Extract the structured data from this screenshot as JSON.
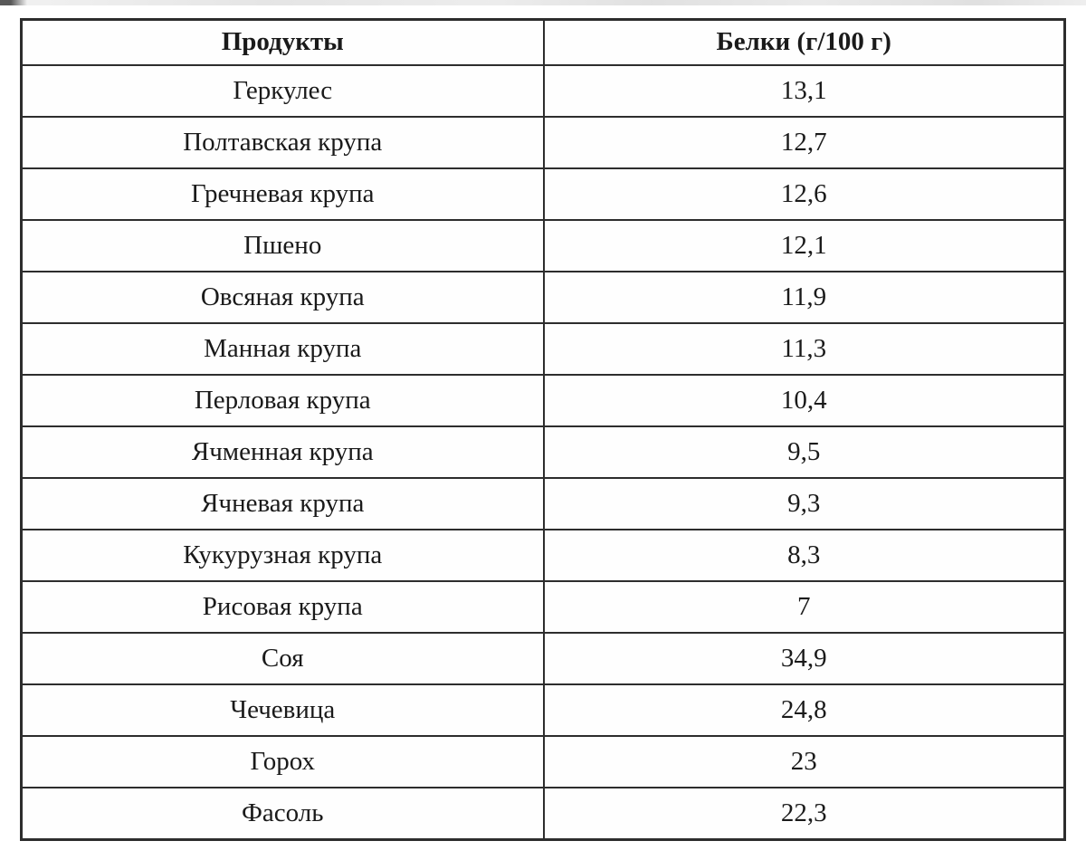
{
  "colors": {
    "border": "#2d2d2d",
    "text": "#1a1a1a",
    "background": "#ffffff"
  },
  "table": {
    "header": {
      "products": "Продукты",
      "protein": "Белки (г/100 г)"
    },
    "rows": [
      {
        "product": "Геркулес",
        "protein": "13,1"
      },
      {
        "product": "Полтавская крупа",
        "protein": "12,7"
      },
      {
        "product": "Гречневая крупа",
        "protein": "12,6"
      },
      {
        "product": "Пшено",
        "protein": "12,1"
      },
      {
        "product": "Овсяная крупа",
        "protein": "11,9"
      },
      {
        "product": "Манная крупа",
        "protein": "11,3"
      },
      {
        "product": "Перловая крупа",
        "protein": "10,4"
      },
      {
        "product": "Ячменная крупа",
        "protein": "9,5"
      },
      {
        "product": "Ячневая крупа",
        "protein": "9,3"
      },
      {
        "product": "Кукурузная крупа",
        "protein": "8,3"
      },
      {
        "product": "Рисовая крупа",
        "protein": "7"
      },
      {
        "product": "Соя",
        "protein": "34,9"
      },
      {
        "product": "Чечевица",
        "protein": "24,8"
      },
      {
        "product": "Горох",
        "protein": "23"
      },
      {
        "product": "Фасоль",
        "protein": "22,3"
      }
    ]
  },
  "chart_data": {
    "type": "table",
    "title": "",
    "columns": [
      "Продукты",
      "Белки (г/100 г)"
    ],
    "rows": [
      [
        "Геркулес",
        13.1
      ],
      [
        "Полтавская крупа",
        12.7
      ],
      [
        "Гречневая крупа",
        12.6
      ],
      [
        "Пшено",
        12.1
      ],
      [
        "Овсяная крупа",
        11.9
      ],
      [
        "Манная крупа",
        11.3
      ],
      [
        "Перловая крупа",
        10.4
      ],
      [
        "Ячменная крупа",
        9.5
      ],
      [
        "Ячневая крупа",
        9.3
      ],
      [
        "Кукурузная крупа",
        8.3
      ],
      [
        "Рисовая крупа",
        7
      ],
      [
        "Соя",
        34.9
      ],
      [
        "Чечевица",
        24.8
      ],
      [
        "Горох",
        23
      ],
      [
        "Фасоль",
        22.3
      ]
    ]
  }
}
